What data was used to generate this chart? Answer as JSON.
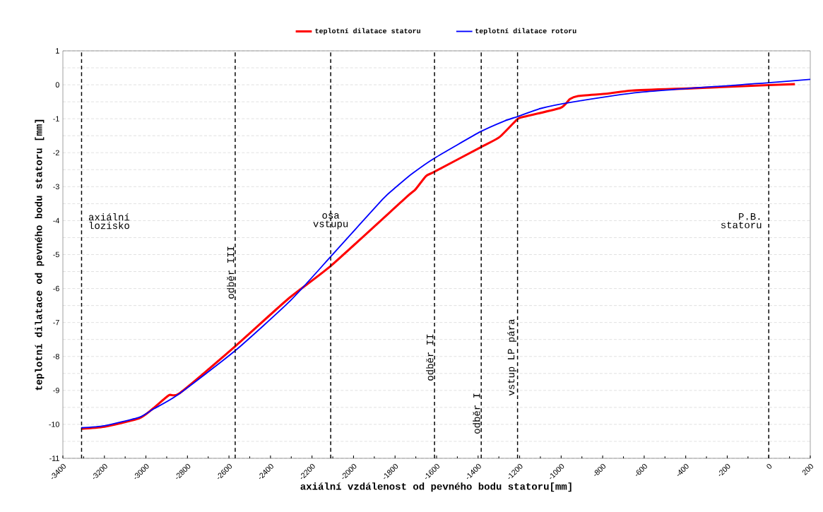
{
  "chart_data": {
    "type": "line",
    "xlabel": "axiální vzdálenost od pevného bodu statoru[mm]",
    "ylabel": "teplotní dilatace od pevného bodu statoru [mm]",
    "xlim": [
      -3400,
      200
    ],
    "ylim": [
      -11,
      1
    ],
    "xticks": [
      -3400,
      -3200,
      -3000,
      -2800,
      -2600,
      -2400,
      -2200,
      -2000,
      -1800,
      -1600,
      -1400,
      -1200,
      -1000,
      -800,
      -600,
      -400,
      -200,
      0,
      200
    ],
    "yticks": [
      -11,
      -10,
      -9,
      -8,
      -7,
      -6,
      -5,
      -4,
      -3,
      -2,
      -1,
      0,
      1
    ],
    "grid": "y",
    "legend": "top",
    "marker": "none",
    "line_style": "solid",
    "series": [
      {
        "name": "teplotní dilatace statoru",
        "color": "#ff0000",
        "x": [
          -3312,
          -3200,
          -3032,
          -2967,
          -2889,
          -2837,
          -2570,
          -2316,
          -2107,
          -1749,
          -1703,
          -1651,
          -1610,
          -1388,
          -1297,
          -1212,
          -1179,
          -1003,
          -958,
          -919,
          -776,
          -659,
          -359,
          -1,
          126
        ],
        "values": [
          -10.13,
          -10.07,
          -9.82,
          -9.54,
          -9.14,
          -9.08,
          -7.7,
          -6.31,
          -5.32,
          -3.33,
          -3.09,
          -2.69,
          -2.56,
          -1.84,
          -1.54,
          -1.02,
          -0.94,
          -0.68,
          -0.42,
          -0.33,
          -0.26,
          -0.17,
          -0.1,
          -0.01,
          0.02
        ]
      },
      {
        "name": "teplotní dilatace rotoru",
        "color": "#0000ff",
        "x": [
          -3312,
          -3200,
          -3032,
          -2967,
          -2849,
          -2570,
          -2303,
          -2107,
          -1860,
          -1795,
          -1716,
          -1610,
          -1388,
          -1271,
          -1212,
          -1101,
          -958,
          -619,
          -1,
          200
        ],
        "values": [
          -10.1,
          -10.04,
          -9.79,
          -9.56,
          -9.14,
          -7.83,
          -6.35,
          -5.04,
          -3.37,
          -3.01,
          -2.61,
          -2.16,
          -1.38,
          -1.06,
          -0.94,
          -0.7,
          -0.52,
          -0.22,
          0.06,
          0.16
        ]
      }
    ],
    "ref_lines": [
      {
        "axis": "x",
        "value": -3310,
        "label": "axiální lozisko",
        "color": "#000000",
        "line_style": "dashed"
      },
      {
        "axis": "x",
        "value": -2570,
        "label": "odběr III",
        "color": "#000000",
        "line_style": "dashed"
      },
      {
        "axis": "x",
        "value": -2110,
        "label": "osa vstupu",
        "color": "#000000",
        "line_style": "dashed"
      },
      {
        "axis": "x",
        "value": -1610,
        "label": "odběr II",
        "color": "#000000",
        "line_style": "dashed"
      },
      {
        "axis": "x",
        "value": -1385,
        "label": "odběr I",
        "color": "#000000",
        "line_style": "dashed"
      },
      {
        "axis": "x",
        "value": -1210,
        "label": "vstup LP pára",
        "color": "#000000",
        "line_style": "dashed"
      },
      {
        "axis": "x",
        "value": 0,
        "label": "P.B. statoru",
        "color": "#000000",
        "line_style": "dashed"
      }
    ]
  }
}
